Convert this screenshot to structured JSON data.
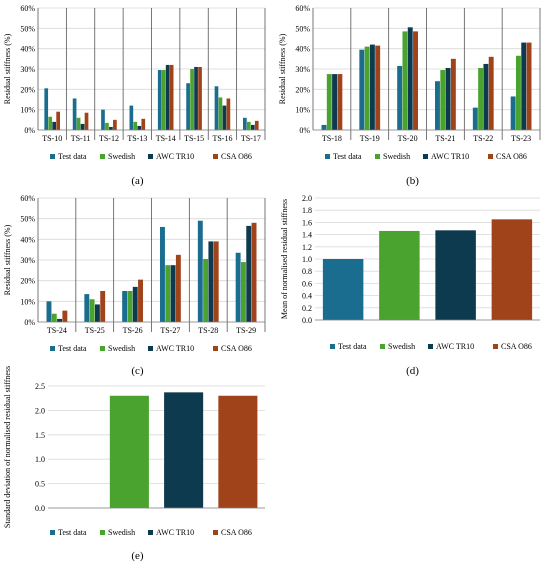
{
  "colors": {
    "test_data": "#1a6d8f",
    "swedish": "#4aa32e",
    "awc_tr10": "#0d3a4f",
    "csa_o86": "#a0431a",
    "grid": "#d9d9d9",
    "divider": "#555555",
    "axis": "#7f7f7f"
  },
  "legend": [
    "Test data",
    "Swedish",
    "AWC TR10",
    "CSA O86"
  ],
  "chart_data": [
    {
      "panel": "(a)",
      "type": "bar",
      "ylabel": "Residual stiffness (%)",
      "yticks": [
        "0%",
        "10%",
        "20%",
        "30%",
        "40%",
        "50%",
        "60%"
      ],
      "ylim": [
        0,
        60
      ],
      "grid": true,
      "legend_position": "bottom",
      "categories": [
        "TS-10",
        "TS-11",
        "TS-12",
        "TS-13",
        "TS-14",
        "TS-15",
        "TS-16",
        "TS-17"
      ],
      "series": [
        {
          "name": "Test data",
          "values": [
            20.5,
            15.5,
            10,
            12,
            29.5,
            23,
            21.5,
            6
          ]
        },
        {
          "name": "Swedish",
          "values": [
            6.5,
            6,
            3.5,
            4,
            29.5,
            30,
            16,
            4
          ]
        },
        {
          "name": "AWC TR10",
          "values": [
            4,
            3,
            1.5,
            2,
            32,
            31,
            12,
            2.5
          ]
        },
        {
          "name": "CSA O86",
          "values": [
            9,
            8.5,
            5,
            5.5,
            32,
            31,
            15.5,
            4.5
          ]
        }
      ]
    },
    {
      "panel": "(b)",
      "type": "bar",
      "ylabel": "Residual stiffness (%)",
      "yticks": [
        "0%",
        "10%",
        "20%",
        "30%",
        "40%",
        "50%",
        "60%"
      ],
      "ylim": [
        0,
        60
      ],
      "grid": true,
      "legend_position": "bottom",
      "categories": [
        "TS-18",
        "TS-19",
        "TS-20",
        "TS-21",
        "TS-22",
        "TS-23"
      ],
      "series": [
        {
          "name": "Test data",
          "values": [
            2.5,
            39.5,
            31.5,
            24,
            11,
            16.5
          ]
        },
        {
          "name": "Swedish",
          "values": [
            27.5,
            41,
            48.5,
            29.5,
            30.5,
            36.5
          ]
        },
        {
          "name": "AWC TR10",
          "values": [
            27.5,
            42,
            50.5,
            30.5,
            32.5,
            43
          ]
        },
        {
          "name": "CSA O86",
          "values": [
            27.5,
            41.5,
            48.5,
            35,
            36,
            43
          ]
        }
      ]
    },
    {
      "panel": "(c)",
      "type": "bar",
      "ylabel": "Residual stiffness (%)",
      "yticks": [
        "0%",
        "10%",
        "20%",
        "30%",
        "40%",
        "50%",
        "60%"
      ],
      "ylim": [
        0,
        60
      ],
      "grid": true,
      "legend_position": "bottom",
      "categories": [
        "TS-24",
        "TS-25",
        "TS-26",
        "TS-27",
        "TS-28",
        "TS-29"
      ],
      "series": [
        {
          "name": "Test data",
          "values": [
            10,
            13.5,
            15,
            46,
            49,
            33.5
          ]
        },
        {
          "name": "Swedish",
          "values": [
            4,
            11,
            15,
            27.5,
            30.5,
            29
          ]
        },
        {
          "name": "AWC TR10",
          "values": [
            1.5,
            8.5,
            17,
            27.5,
            39,
            46.5
          ]
        },
        {
          "name": "CSA O86",
          "values": [
            5.5,
            15,
            20.5,
            32.5,
            39,
            48
          ]
        }
      ]
    },
    {
      "panel": "(d)",
      "type": "bar",
      "ylabel": "Mean of normalised residual stiffness",
      "yticks": [
        "0.0",
        "0.2",
        "0.4",
        "0.6",
        "0.8",
        "1.0",
        "1.2",
        "1.4",
        "1.6",
        "1.8",
        "2.0"
      ],
      "ylim": [
        0,
        2.0
      ],
      "grid": true,
      "legend_position": "bottom",
      "categories": [
        "Test data",
        "Swedish",
        "AWC TR10",
        "CSA O86"
      ],
      "values": [
        1.0,
        1.46,
        1.47,
        1.65
      ]
    },
    {
      "panel": "(e)",
      "type": "bar",
      "ylabel": "Standard deviation of normalised residual stiffness",
      "yticks": [
        "0.0",
        "0.5",
        "1.0",
        "1.5",
        "2.0",
        "2.5"
      ],
      "ylim": [
        0,
        2.5
      ],
      "grid": true,
      "legend_position": "bottom",
      "categories": [
        "Test data",
        "Swedish",
        "AWC TR10",
        "CSA O86"
      ],
      "values": [
        0,
        2.3,
        2.37,
        2.3
      ]
    }
  ]
}
